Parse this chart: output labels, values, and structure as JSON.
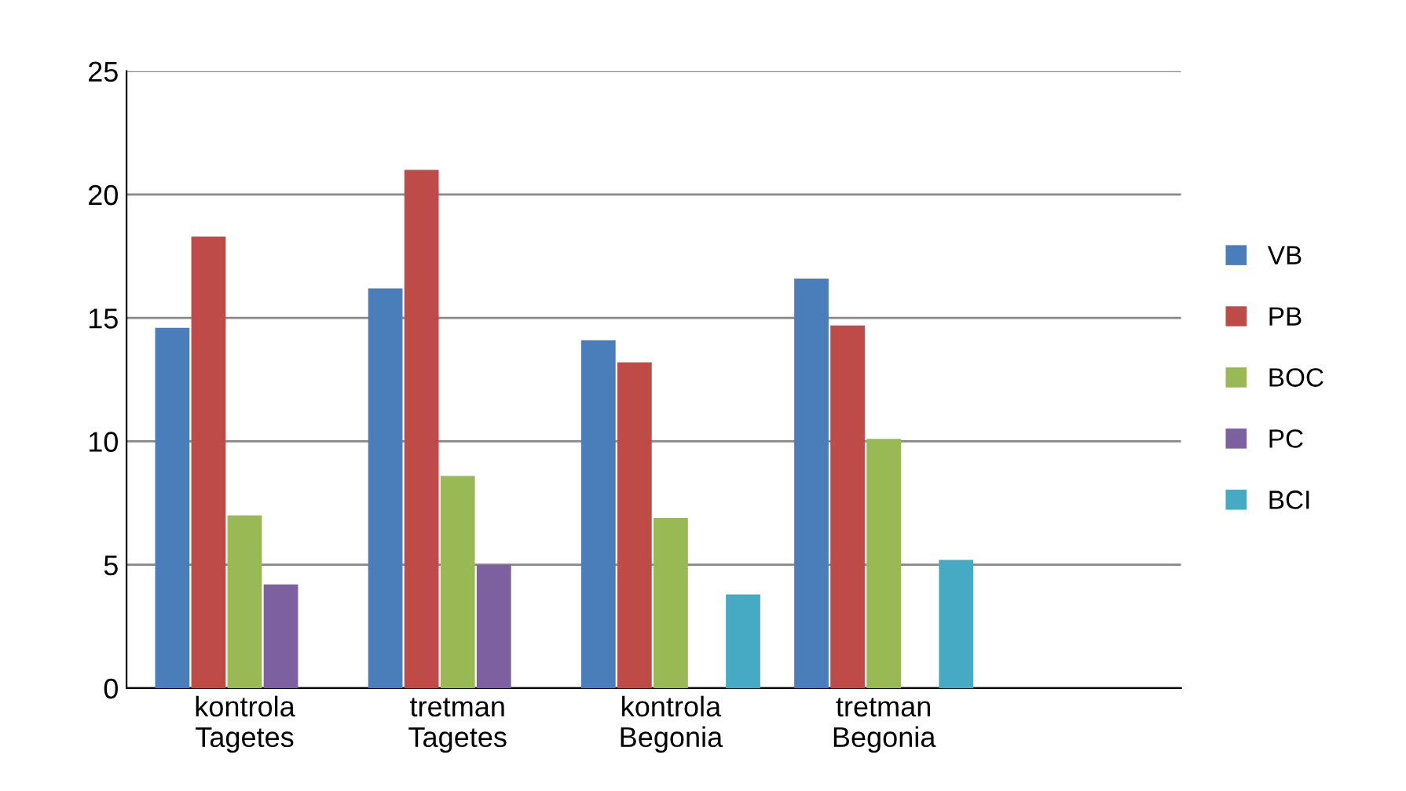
{
  "chart_data": {
    "type": "bar",
    "categories": [
      "kontrola\nTagetes",
      "tretman\nTagetes",
      "kontrola\nBegonia",
      "tretman\nBegonia"
    ],
    "series": [
      {
        "name": "VB",
        "color": "#4a7ebb",
        "values": [
          14.6,
          16.2,
          14.1,
          16.6
        ]
      },
      {
        "name": "PB",
        "color": "#be4b48",
        "values": [
          18.3,
          21.0,
          13.2,
          14.7
        ]
      },
      {
        "name": "BOC",
        "color": "#98b954",
        "values": [
          7.0,
          8.6,
          6.9,
          10.1
        ]
      },
      {
        "name": "PC",
        "color": "#7d60a0",
        "values": [
          4.2,
          5.0,
          null,
          null
        ]
      },
      {
        "name": "BCI",
        "color": "#46aac5",
        "values": [
          null,
          null,
          3.8,
          5.2
        ]
      }
    ],
    "ylim": [
      0,
      25
    ],
    "yticks": [
      0,
      5,
      10,
      15,
      20,
      25
    ],
    "grid": "y",
    "legend": "right"
  }
}
